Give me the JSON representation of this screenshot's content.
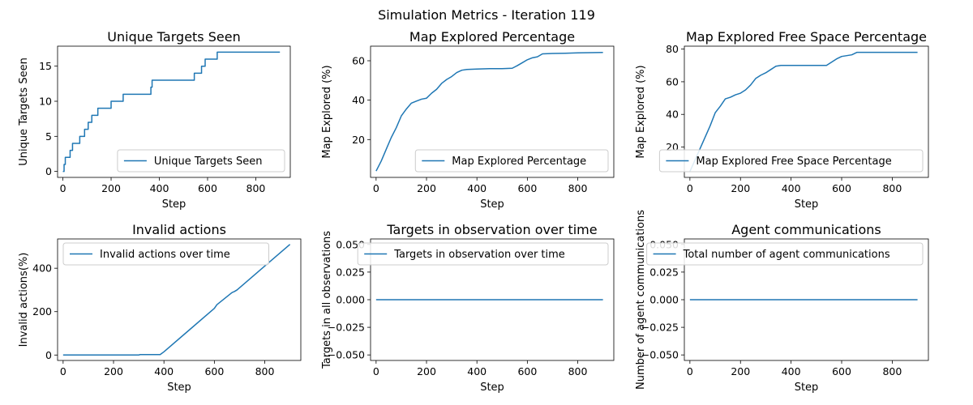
{
  "figure": {
    "suptitle": "Simulation Metrics - Iteration 119"
  },
  "chart_data": [
    {
      "type": "line",
      "title": "Unique Targets Seen",
      "xlabel": "Step",
      "ylabel": "Unique Targets Seen",
      "xlim": [
        -22,
        943
      ],
      "ylim": [
        -0.85,
        17.85
      ],
      "xticks": [
        0,
        200,
        400,
        600,
        800
      ],
      "yticks": [
        0,
        5,
        10,
        15
      ],
      "legend": "lower right",
      "step": true,
      "series": [
        {
          "name": "Unique Targets Seen",
          "color": "#1f77b4",
          "points": [
            [
              0,
              0
            ],
            [
              5,
              1
            ],
            [
              10,
              2
            ],
            [
              30,
              3
            ],
            [
              40,
              4
            ],
            [
              70,
              5
            ],
            [
              90,
              6
            ],
            [
              105,
              7
            ],
            [
              120,
              8
            ],
            [
              145,
              9
            ],
            [
              200,
              10
            ],
            [
              250,
              11
            ],
            [
              365,
              12
            ],
            [
              370,
              13
            ],
            [
              545,
              14
            ],
            [
              575,
              15
            ],
            [
              590,
              16
            ],
            [
              640,
              17
            ],
            [
              900,
              17
            ]
          ]
        }
      ]
    },
    {
      "type": "line",
      "title": "Map Explored Percentage",
      "xlabel": "Step",
      "ylabel": "Map Explored (%)",
      "xlim": [
        -22,
        943
      ],
      "ylim": [
        0.8,
        67.4
      ],
      "xticks": [
        0,
        200,
        400,
        600,
        800
      ],
      "yticks": [
        20,
        40,
        60
      ],
      "legend": "lower right",
      "step": false,
      "series": [
        {
          "name": "Map Explored Percentage",
          "color": "#1f77b4",
          "points": [
            [
              0,
              4
            ],
            [
              20,
              9
            ],
            [
              40,
              15
            ],
            [
              60,
              21
            ],
            [
              80,
              26
            ],
            [
              100,
              32
            ],
            [
              120,
              35.5
            ],
            [
              140,
              38.5
            ],
            [
              160,
              39.5
            ],
            [
              180,
              40.5
            ],
            [
              200,
              41
            ],
            [
              220,
              43.5
            ],
            [
              240,
              45.5
            ],
            [
              260,
              48.5
            ],
            [
              280,
              50.5
            ],
            [
              300,
              52
            ],
            [
              320,
              54
            ],
            [
              340,
              55.2
            ],
            [
              360,
              55.6
            ],
            [
              400,
              55.8
            ],
            [
              450,
              56
            ],
            [
              500,
              56
            ],
            [
              540,
              56.2
            ],
            [
              560,
              57.5
            ],
            [
              580,
              59
            ],
            [
              600,
              60.5
            ],
            [
              620,
              61.5
            ],
            [
              640,
              62
            ],
            [
              660,
              63.5
            ],
            [
              700,
              63.7
            ],
            [
              750,
              63.8
            ],
            [
              800,
              64
            ],
            [
              900,
              64.2
            ]
          ]
        }
      ]
    },
    {
      "type": "line",
      "title": "Map Explored Free Space Percentage",
      "xlabel": "Step",
      "ylabel": "Map Explored (%)",
      "xlim": [
        -22,
        943
      ],
      "ylim": [
        1.4,
        81.8
      ],
      "xticks": [
        0,
        200,
        400,
        600,
        800
      ],
      "yticks": [
        20,
        40,
        60,
        80
      ],
      "legend": "lower right",
      "step": false,
      "series": [
        {
          "name": "Map Explored Free Space Percentage",
          "color": "#1f77b4",
          "points": [
            [
              0,
              5
            ],
            [
              20,
              12
            ],
            [
              40,
              19
            ],
            [
              60,
              26
            ],
            [
              80,
              33
            ],
            [
              100,
              41
            ],
            [
              120,
              45
            ],
            [
              140,
              49.5
            ],
            [
              160,
              50.5
            ],
            [
              180,
              52
            ],
            [
              200,
              53
            ],
            [
              220,
              55
            ],
            [
              240,
              58
            ],
            [
              260,
              62
            ],
            [
              280,
              64
            ],
            [
              300,
              65.5
            ],
            [
              320,
              67.5
            ],
            [
              340,
              69.5
            ],
            [
              360,
              70
            ],
            [
              400,
              70
            ],
            [
              450,
              70
            ],
            [
              500,
              70
            ],
            [
              540,
              70
            ],
            [
              560,
              72
            ],
            [
              580,
              74
            ],
            [
              600,
              75.5
            ],
            [
              620,
              76
            ],
            [
              640,
              76.5
            ],
            [
              660,
              78
            ],
            [
              700,
              78
            ],
            [
              800,
              78
            ],
            [
              900,
              78
            ]
          ]
        }
      ]
    },
    {
      "type": "line",
      "title": "Invalid actions",
      "xlabel": "Step",
      "ylabel": "Invalid actions(%)",
      "xlim": [
        -22,
        943
      ],
      "ylim": [
        -25,
        535
      ],
      "xticks": [
        0,
        200,
        400,
        600,
        800
      ],
      "yticks": [
        0,
        200,
        400
      ],
      "legend": "upper left",
      "step": false,
      "series": [
        {
          "name": "Invalid actions over time",
          "color": "#1f77b4",
          "points": [
            [
              0,
              0
            ],
            [
              300,
              0
            ],
            [
              305,
              2
            ],
            [
              385,
              2
            ],
            [
              400,
              15
            ],
            [
              500,
              115
            ],
            [
              600,
              215
            ],
            [
              610,
              232
            ],
            [
              670,
              288
            ],
            [
              680,
              293
            ],
            [
              690,
              300
            ],
            [
              800,
              410
            ],
            [
              900,
              510
            ]
          ]
        }
      ]
    },
    {
      "type": "line",
      "title": "Targets in observation over time",
      "xlabel": "Step",
      "ylabel": "Targets in all observations",
      "xlim": [
        -22,
        943
      ],
      "ylim": [
        -0.055,
        0.055
      ],
      "xticks": [
        0,
        200,
        400,
        600,
        800
      ],
      "yticks": [
        -0.05,
        -0.025,
        0,
        0.025,
        0.05
      ],
      "ytick_labels": [
        "−0.050",
        "−0.025",
        "0.000",
        "0.025",
        "0.050"
      ],
      "legend": "upper right",
      "step": false,
      "series": [
        {
          "name": "Targets in observation over time",
          "color": "#1f77b4",
          "points": [
            [
              0,
              0
            ],
            [
              900,
              0
            ]
          ]
        }
      ]
    },
    {
      "type": "line",
      "title": "Agent communications",
      "xlabel": "Step",
      "ylabel": "Number of agent communications",
      "xlim": [
        -22,
        943
      ],
      "ylim": [
        -0.055,
        0.055
      ],
      "xticks": [
        0,
        200,
        400,
        600,
        800
      ],
      "yticks": [
        -0.05,
        -0.025,
        0,
        0.025,
        0.05
      ],
      "ytick_labels": [
        "−0.050",
        "−0.025",
        "0.000",
        "0.025",
        "0.050"
      ],
      "legend": "upper right",
      "step": false,
      "series": [
        {
          "name": "Total number of agent communications",
          "color": "#1f77b4",
          "points": [
            [
              0,
              0
            ],
            [
              900,
              0
            ]
          ]
        }
      ]
    }
  ]
}
